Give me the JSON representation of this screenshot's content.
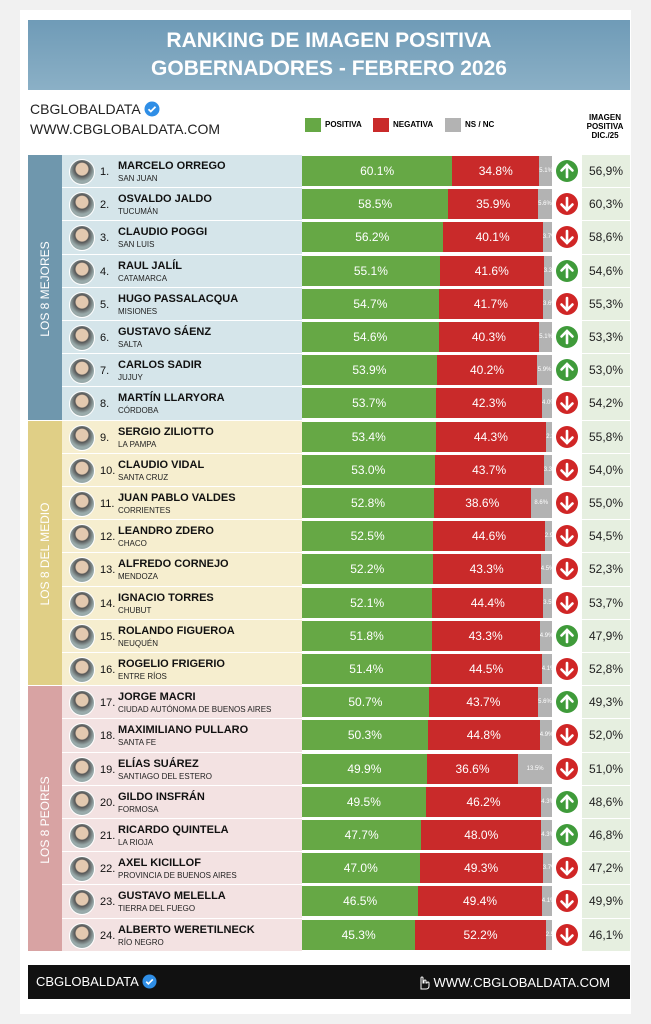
{
  "header": {
    "title_line1": "RANKING DE IMAGEN POSITIVA",
    "title_line2": "GOBERNADORES - FEBRERO 2026",
    "brand": "CBGLOBALDATA",
    "website": "WWW.CBGLOBALDATA.COM"
  },
  "legend": {
    "positive": "POSITIVA",
    "negative": "NEGATIVA",
    "nsnc": "NS / NC",
    "colors": {
      "positive": "#66a845",
      "negative": "#c92a2a",
      "nsnc": "#b3b3b3"
    }
  },
  "column_header": "IMAGEN POSITIVA DIC./25",
  "groups": [
    {
      "label": "LOS 8 MEJORES",
      "color": "#d5e5ea"
    },
    {
      "label": "LOS 8 DEL MEDIO",
      "color": "#f6eecf"
    },
    {
      "label": "LOS 8 PEORES",
      "color": "#f3e2e2"
    }
  ],
  "rows": [
    {
      "rank": "1.",
      "name": "MARCELO ORREGO",
      "province": "SAN JUAN",
      "positive": 60.1,
      "positive_label": "60.1%",
      "negative": 34.8,
      "negative_label": "34.8%",
      "nsnc": 5.1,
      "nsnc_label": "5.1%",
      "trend": "up",
      "previous": 56.9,
      "previous_label": "56,9%"
    },
    {
      "rank": "2.",
      "name": "OSVALDO JALDO",
      "province": "TUCUMÁN",
      "positive": 58.5,
      "positive_label": "58.5%",
      "negative": 35.9,
      "negative_label": "35.9%",
      "nsnc": 5.6,
      "nsnc_label": "5.6%",
      "trend": "down",
      "previous": 60.3,
      "previous_label": "60,3%"
    },
    {
      "rank": "3.",
      "name": "CLAUDIO POGGI",
      "province": "SAN LUIS",
      "positive": 56.2,
      "positive_label": "56.2%",
      "negative": 40.1,
      "negative_label": "40.1%",
      "nsnc": 3.7,
      "nsnc_label": "3.7%",
      "trend": "down",
      "previous": 58.6,
      "previous_label": "58,6%"
    },
    {
      "rank": "4.",
      "name": "RAUL JALÍL",
      "province": "CATAMARCA",
      "positive": 55.1,
      "positive_label": "55.1%",
      "negative": 41.6,
      "negative_label": "41.6%",
      "nsnc": 3.3,
      "nsnc_label": "3.3%",
      "trend": "up",
      "previous": 54.6,
      "previous_label": "54,6%"
    },
    {
      "rank": "5.",
      "name": "HUGO PASSALACQUA",
      "province": "MISIONES",
      "positive": 54.7,
      "positive_label": "54.7%",
      "negative": 41.7,
      "negative_label": "41.7%",
      "nsnc": 3.6,
      "nsnc_label": "3.6%",
      "trend": "down",
      "previous": 55.3,
      "previous_label": "55,3%"
    },
    {
      "rank": "6.",
      "name": "GUSTAVO SÁENZ",
      "province": "SALTA",
      "positive": 54.6,
      "positive_label": "54.6%",
      "negative": 40.3,
      "negative_label": "40.3%",
      "nsnc": 5.1,
      "nsnc_label": "5.1%",
      "trend": "up",
      "previous": 53.3,
      "previous_label": "53,3%"
    },
    {
      "rank": "7.",
      "name": "CARLOS SADIR",
      "province": "JUJUY",
      "positive": 53.9,
      "positive_label": "53.9%",
      "negative": 40.2,
      "negative_label": "40.2%",
      "nsnc": 5.9,
      "nsnc_label": "5.9%",
      "trend": "up",
      "previous": 53.0,
      "previous_label": "53,0%"
    },
    {
      "rank": "8.",
      "name": "MARTÍN LLARYORA",
      "province": "CÓRDOBA",
      "positive": 53.7,
      "positive_label": "53.7%",
      "negative": 42.3,
      "negative_label": "42.3%",
      "nsnc": 4.0,
      "nsnc_label": "4.0%",
      "trend": "down",
      "previous": 54.2,
      "previous_label": "54,2%"
    },
    {
      "rank": "9.",
      "name": "SERGIO ZILIOTTO",
      "province": "LA PAMPA",
      "positive": 53.4,
      "positive_label": "53.4%",
      "negative": 44.3,
      "negative_label": "44.3%",
      "nsnc": 2.3,
      "nsnc_label": "2.3%",
      "trend": "down",
      "previous": 55.8,
      "previous_label": "55,8%"
    },
    {
      "rank": "10.",
      "name": "CLAUDIO VIDAL",
      "province": "SANTA CRUZ",
      "positive": 53.0,
      "positive_label": "53.0%",
      "negative": 43.7,
      "negative_label": "43.7%",
      "nsnc": 3.3,
      "nsnc_label": "3.3%",
      "trend": "down",
      "previous": 54.0,
      "previous_label": "54,0%"
    },
    {
      "rank": "11.",
      "name": "JUAN PABLO VALDES",
      "province": "CORRIENTES",
      "positive": 52.8,
      "positive_label": "52.8%",
      "negative": 38.6,
      "negative_label": "38.6%",
      "nsnc": 8.6,
      "nsnc_label": "8.6%",
      "trend": "down",
      "previous": 55.0,
      "previous_label": "55,0%"
    },
    {
      "rank": "12.",
      "name": "LEANDRO ZDERO",
      "province": "CHACO",
      "positive": 52.5,
      "positive_label": "52.5%",
      "negative": 44.6,
      "negative_label": "44.6%",
      "nsnc": 2.9,
      "nsnc_label": "2.9%",
      "trend": "down",
      "previous": 54.5,
      "previous_label": "54,5%"
    },
    {
      "rank": "13.",
      "name": "ALFREDO CORNEJO",
      "province": "MENDOZA",
      "positive": 52.2,
      "positive_label": "52.2%",
      "negative": 43.3,
      "negative_label": "43.3%",
      "nsnc": 4.5,
      "nsnc_label": "4.5%",
      "trend": "down",
      "previous": 52.3,
      "previous_label": "52,3%"
    },
    {
      "rank": "14.",
      "name": "IGNACIO TORRES",
      "province": "CHUBUT",
      "positive": 52.1,
      "positive_label": "52.1%",
      "negative": 44.4,
      "negative_label": "44.4%",
      "nsnc": 3.5,
      "nsnc_label": "3.5%",
      "trend": "down",
      "previous": 53.7,
      "previous_label": "53,7%"
    },
    {
      "rank": "15.",
      "name": "ROLANDO FIGUEROA",
      "province": "NEUQUÉN",
      "positive": 51.8,
      "positive_label": "51.8%",
      "negative": 43.3,
      "negative_label": "43.3%",
      "nsnc": 4.9,
      "nsnc_label": "4.9%",
      "trend": "up",
      "previous": 47.9,
      "previous_label": "47,9%"
    },
    {
      "rank": "16.",
      "name": "ROGELIO FRIGERIO",
      "province": "ENTRE RÍOS",
      "positive": 51.4,
      "positive_label": "51.4%",
      "negative": 44.5,
      "negative_label": "44.5%",
      "nsnc": 4.1,
      "nsnc_label": "4.1%",
      "trend": "down",
      "previous": 52.8,
      "previous_label": "52,8%"
    },
    {
      "rank": "17.",
      "name": "JORGE MACRI",
      "province": "CIUDAD AUTÓNOMA DE BUENOS AIRES",
      "positive": 50.7,
      "positive_label": "50.7%",
      "negative": 43.7,
      "negative_label": "43.7%",
      "nsnc": 5.6,
      "nsnc_label": "5.6%",
      "trend": "up",
      "previous": 49.3,
      "previous_label": "49,3%"
    },
    {
      "rank": "18.",
      "name": "MAXIMILIANO PULLARO",
      "province": "SANTA FE",
      "positive": 50.3,
      "positive_label": "50.3%",
      "negative": 44.8,
      "negative_label": "44.8%",
      "nsnc": 4.9,
      "nsnc_label": "4.9%",
      "trend": "down",
      "previous": 52.0,
      "previous_label": "52,0%"
    },
    {
      "rank": "19.",
      "name": "ELÍAS SUÁREZ",
      "province": "SANTIAGO DEL ESTERO",
      "positive": 49.9,
      "positive_label": "49.9%",
      "negative": 36.6,
      "negative_label": "36.6%",
      "nsnc": 13.5,
      "nsnc_label": "13.5%",
      "trend": "down",
      "previous": 51.0,
      "previous_label": "51,0%"
    },
    {
      "rank": "20.",
      "name": "GILDO INSFRÁN",
      "province": "FORMOSA",
      "positive": 49.5,
      "positive_label": "49.5%",
      "negative": 46.2,
      "negative_label": "46.2%",
      "nsnc": 4.3,
      "nsnc_label": "4.3%",
      "trend": "up",
      "previous": 48.6,
      "previous_label": "48,6%"
    },
    {
      "rank": "21.",
      "name": "RICARDO QUINTELA",
      "province": "LA RIOJA",
      "positive": 47.7,
      "positive_label": "47.7%",
      "negative": 48.0,
      "negative_label": "48.0%",
      "nsnc": 4.3,
      "nsnc_label": "4.3%",
      "trend": "up",
      "previous": 46.8,
      "previous_label": "46,8%"
    },
    {
      "rank": "22.",
      "name": "AXEL KICILLOF",
      "province": "PROVINCIA DE BUENOS AIRES",
      "positive": 47.0,
      "positive_label": "47.0%",
      "negative": 49.3,
      "negative_label": "49.3%",
      "nsnc": 3.7,
      "nsnc_label": "3.7%",
      "trend": "down",
      "previous": 47.2,
      "previous_label": "47,2%"
    },
    {
      "rank": "23.",
      "name": "GUSTAVO MELELLA",
      "province": "TIERRA DEL FUEGO",
      "positive": 46.5,
      "positive_label": "46.5%",
      "negative": 49.4,
      "negative_label": "49.4%",
      "nsnc": 4.1,
      "nsnc_label": "4.1%",
      "trend": "down",
      "previous": 49.9,
      "previous_label": "49,9%"
    },
    {
      "rank": "24.",
      "name": "ALBERTO WERETILNECK",
      "province": "RÍO NEGRO",
      "positive": 45.3,
      "positive_label": "45.3%",
      "negative": 52.2,
      "negative_label": "52.2%",
      "nsnc": 2.5,
      "nsnc_label": "2.5%",
      "trend": "down",
      "previous": 46.1,
      "previous_label": "46,1%"
    }
  ],
  "footer": {
    "brand": "CBGLOBALDATA",
    "website": "WWW.CBGLOBALDATA.COM"
  }
}
